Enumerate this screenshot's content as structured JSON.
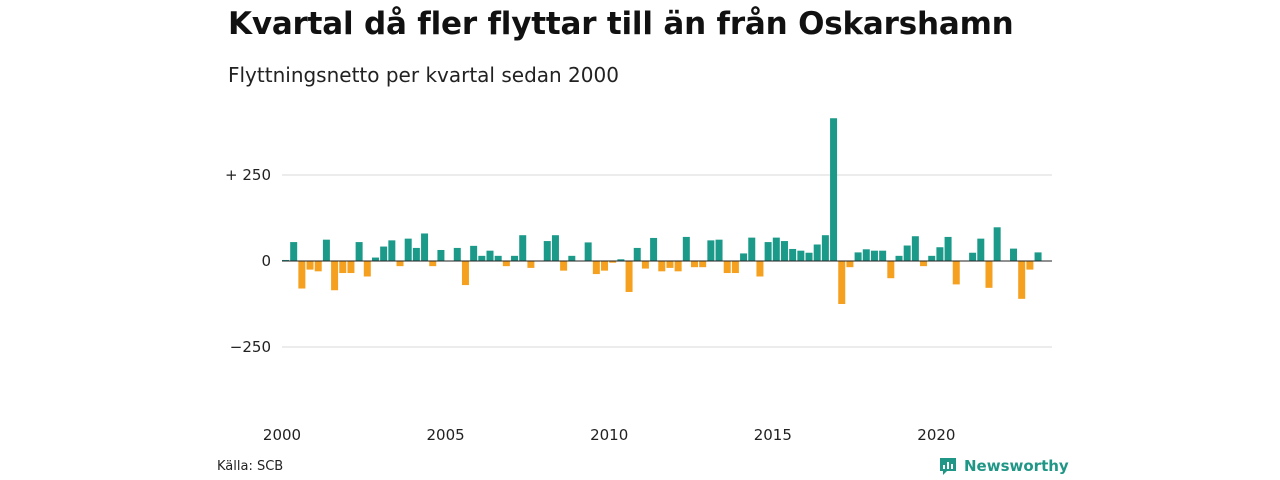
{
  "title": "Kvartal då fler flyttar till än från Oskarshamn",
  "subtitle": "Flyttningsnetto per kvartal sedan 2000",
  "source": "Källa: SCB",
  "brand": {
    "name": "Newsworthy",
    "icon": "newsworthy-logo-icon",
    "color": "#1f9686"
  },
  "colors": {
    "positive": "#1b9a8a",
    "negative": "#f5a01e",
    "grid": "#d9d9d9",
    "zero": "#222222"
  },
  "chart_data": {
    "type": "bar",
    "title": "Kvartal då fler flyttar till än från Oskarshamn",
    "subtitle": "Flyttningsnetto per kvartal sedan 2000",
    "x_ticks": [
      "2000",
      "2005",
      "2010",
      "2015",
      "2020"
    ],
    "y_ticks": [
      {
        "value": 250,
        "label": "+ 250"
      },
      {
        "value": 0,
        "label": "0"
      },
      {
        "value": -250,
        "label": "−250"
      }
    ],
    "ylim": [
      -380,
      420
    ],
    "grid": true,
    "start": "2000 Q1",
    "categories": [
      "2000 Q1",
      "2000 Q2",
      "2000 Q3",
      "2000 Q4",
      "2001 Q1",
      "2001 Q2",
      "2001 Q3",
      "2001 Q4",
      "2002 Q1",
      "2002 Q2",
      "2002 Q3",
      "2002 Q4",
      "2003 Q1",
      "2003 Q2",
      "2003 Q3",
      "2003 Q4",
      "2004 Q1",
      "2004 Q2",
      "2004 Q3",
      "2004 Q4",
      "2005 Q1",
      "2005 Q2",
      "2005 Q3",
      "2005 Q4",
      "2006 Q1",
      "2006 Q2",
      "2006 Q3",
      "2006 Q4",
      "2007 Q1",
      "2007 Q2",
      "2007 Q3",
      "2007 Q4",
      "2008 Q1",
      "2008 Q2",
      "2008 Q3",
      "2008 Q4",
      "2009 Q1",
      "2009 Q2",
      "2009 Q3",
      "2009 Q4",
      "2010 Q1",
      "2010 Q2",
      "2010 Q3",
      "2010 Q4",
      "2011 Q1",
      "2011 Q2",
      "2011 Q3",
      "2011 Q4",
      "2012 Q1",
      "2012 Q2",
      "2012 Q3",
      "2012 Q4",
      "2013 Q1",
      "2013 Q2",
      "2013 Q3",
      "2013 Q4",
      "2014 Q1",
      "2014 Q2",
      "2014 Q3",
      "2014 Q4",
      "2015 Q1",
      "2015 Q2",
      "2015 Q3",
      "2015 Q4",
      "2016 Q1",
      "2016 Q2",
      "2016 Q3",
      "2016 Q4",
      "2017 Q1",
      "2017 Q2",
      "2017 Q3",
      "2017 Q4",
      "2018 Q1",
      "2018 Q2",
      "2018 Q3",
      "2018 Q4",
      "2019 Q1",
      "2019 Q2",
      "2019 Q3",
      "2019 Q4",
      "2020 Q1",
      "2020 Q2",
      "2020 Q3",
      "2020 Q4",
      "2021 Q1",
      "2021 Q2",
      "2021 Q3",
      "2021 Q4",
      "2022 Q1",
      "2022 Q2",
      "2022 Q3",
      "2022 Q4",
      "2023 Q1"
    ],
    "values": [
      3,
      55,
      -80,
      -25,
      -30,
      62,
      -85,
      -35,
      -35,
      55,
      -45,
      10,
      42,
      60,
      -15,
      65,
      38,
      80,
      -15,
      32,
      0,
      38,
      -70,
      44,
      15,
      30,
      15,
      -15,
      15,
      75,
      -20,
      0,
      58,
      75,
      -28,
      15,
      0,
      54,
      -38,
      -28,
      -5,
      5,
      -90,
      38,
      -22,
      67,
      -30,
      -20,
      -30,
      70,
      -18,
      -18,
      60,
      62,
      -35,
      -35,
      22,
      68,
      -45,
      55,
      68,
      58,
      35,
      30,
      24,
      48,
      75,
      415,
      -125,
      -18,
      25,
      34,
      30,
      30,
      -50,
      15,
      45,
      72,
      -15,
      15,
      40,
      70,
      -68,
      0,
      24,
      65,
      -78,
      98,
      0,
      36,
      -110,
      -25,
      25
    ]
  }
}
